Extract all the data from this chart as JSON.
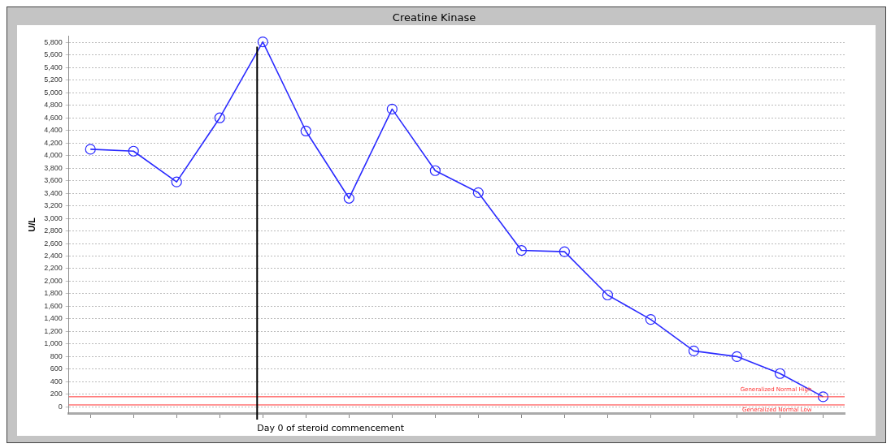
{
  "chart_data": {
    "type": "line",
    "title": "Creatine Kinase",
    "ylabel": "U/L",
    "categories": [
      null,
      null,
      null,
      null,
      null,
      null,
      null,
      null,
      null,
      null,
      null,
      null,
      null,
      null,
      null,
      null,
      null,
      null
    ],
    "series": [
      {
        "color": "#2b2bff",
        "values": [
          4100,
          4070,
          3580,
          4600,
          5810,
          4390,
          3320,
          4740,
          3760,
          3410,
          2490,
          2470,
          1780,
          1390,
          890,
          800,
          530,
          160
        ]
      }
    ],
    "ylim": [
      -100,
      5900
    ],
    "yticks": [
      {
        "value": 0,
        "label": "0"
      },
      {
        "value": 200,
        "label": "200"
      },
      {
        "value": 400,
        "label": "400"
      },
      {
        "value": 600,
        "label": "600"
      },
      {
        "value": 800,
        "label": "800"
      },
      {
        "value": 1000,
        "label": "1,000"
      },
      {
        "value": 1200,
        "label": "1,200"
      },
      {
        "value": 1400,
        "label": "1,400"
      },
      {
        "value": 1600,
        "label": "1,600"
      },
      {
        "value": 1800,
        "label": "1,800"
      },
      {
        "value": 2000,
        "label": "2,000"
      },
      {
        "value": 2200,
        "label": "2,200"
      },
      {
        "value": 2400,
        "label": "2,400"
      },
      {
        "value": 2600,
        "label": "2,600"
      },
      {
        "value": 2800,
        "label": "2,800"
      },
      {
        "value": 3000,
        "label": "3,000"
      },
      {
        "value": 3200,
        "label": "3,200"
      },
      {
        "value": 3400,
        "label": "3,400"
      },
      {
        "value": 3600,
        "label": "3,600"
      },
      {
        "value": 3800,
        "label": "3,800"
      },
      {
        "value": 4000,
        "label": "4,000"
      },
      {
        "value": 4200,
        "label": "4,200"
      },
      {
        "value": 4400,
        "label": "4,400"
      },
      {
        "value": 4600,
        "label": "4,600"
      },
      {
        "value": 4800,
        "label": "4,800"
      },
      {
        "value": 5000,
        "label": "5,000"
      },
      {
        "value": 5200,
        "label": "5,200"
      },
      {
        "value": 5400,
        "label": "5,400"
      },
      {
        "value": 5600,
        "label": "5,600"
      },
      {
        "value": 5800,
        "label": "5,800"
      }
    ],
    "annotations": [
      "Day 0 of steroid commencement"
    ],
    "ref_lines": [
      {
        "axis": "y",
        "value": 160,
        "label": "Generalized Normal High",
        "color": "#ff3030"
      },
      {
        "axis": "y",
        "value": 30,
        "label": "Generalized Normal Low",
        "color": "#ff3030"
      }
    ],
    "grid": "y",
    "marker": "circle",
    "line_style": "solid",
    "tick_labels": "y",
    "legend": false
  }
}
